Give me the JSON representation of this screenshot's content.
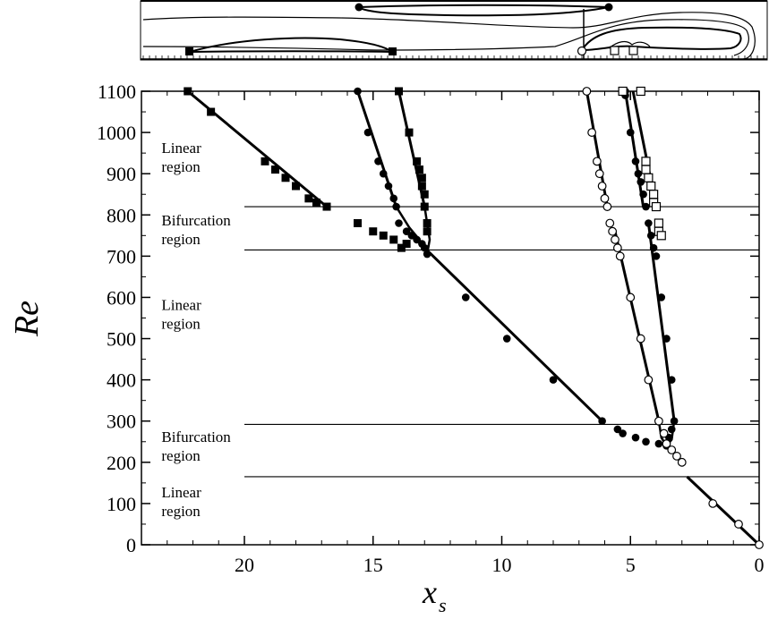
{
  "chart_data": {
    "type": "scatter",
    "title": "",
    "xlabel": "x",
    "xlabel_subscript": "s",
    "ylabel": "Re",
    "xlim": [
      24,
      0
    ],
    "ylim": [
      0,
      1100
    ],
    "x_reversed": true,
    "x_ticks": [
      20,
      15,
      10,
      5,
      0
    ],
    "y_ticks": [
      0,
      100,
      200,
      300,
      400,
      500,
      600,
      700,
      800,
      900,
      1000,
      1100
    ],
    "x_tick_labels": [
      "20",
      "15",
      "10",
      "5",
      "0"
    ],
    "y_tick_labels": [
      "0",
      "100",
      "200",
      "300",
      "400",
      "500",
      "600",
      "700",
      "800",
      "900",
      "1000",
      "1100"
    ],
    "grid": false,
    "legend": "none",
    "region_boundaries": [
      {
        "re": 165,
        "x_from": 20,
        "x_to": 0
      },
      {
        "re": 292,
        "x_from": 20,
        "x_to": 0
      },
      {
        "re": 715,
        "x_from": 20,
        "x_to": 0
      },
      {
        "re": 820,
        "x_from": 20,
        "x_to": 0
      }
    ],
    "region_labels": [
      {
        "lines": [
          "Linear",
          "region"
        ],
        "x": 23.5,
        "re": 950
      },
      {
        "lines": [
          "Bifurcation",
          "region"
        ],
        "x": 23.5,
        "re": 775
      },
      {
        "lines": [
          "Linear",
          "region"
        ],
        "x": 23.5,
        "re": 570
      },
      {
        "lines": [
          "Bifurcation",
          "region"
        ],
        "x": 23.5,
        "re": 250
      },
      {
        "lines": [
          "Linear",
          "region"
        ],
        "x": 23.5,
        "re": 115
      }
    ],
    "series": [
      {
        "marker": "filled-square",
        "points": [
          [
            22.2,
            1100
          ],
          [
            21.3,
            1050
          ],
          [
            19.2,
            930
          ],
          [
            18.8,
            910
          ],
          [
            18.4,
            890
          ],
          [
            18.0,
            870
          ],
          [
            17.5,
            840
          ],
          [
            17.2,
            830
          ],
          [
            16.8,
            820
          ],
          [
            15.6,
            780
          ],
          [
            15.0,
            760
          ],
          [
            14.6,
            750
          ],
          [
            14.2,
            740
          ],
          [
            13.7,
            730
          ],
          [
            13.9,
            720
          ],
          [
            14.0,
            1100
          ],
          [
            13.6,
            1000
          ],
          [
            13.3,
            930
          ],
          [
            13.2,
            910
          ],
          [
            13.1,
            890
          ],
          [
            13.1,
            870
          ],
          [
            13.0,
            850
          ],
          [
            13.0,
            820
          ],
          [
            12.9,
            780
          ],
          [
            12.9,
            760
          ]
        ]
      },
      {
        "marker": "filled-circle",
        "points": [
          [
            15.6,
            1100
          ],
          [
            15.2,
            1000
          ],
          [
            14.8,
            930
          ],
          [
            14.6,
            900
          ],
          [
            14.4,
            870
          ],
          [
            14.2,
            840
          ],
          [
            14.1,
            820
          ],
          [
            14.0,
            780
          ],
          [
            13.7,
            760
          ],
          [
            13.5,
            750
          ],
          [
            13.3,
            740
          ],
          [
            13.1,
            730
          ],
          [
            13.0,
            720
          ],
          [
            12.9,
            705
          ],
          [
            11.4,
            600
          ],
          [
            9.8,
            500
          ],
          [
            8.0,
            400
          ],
          [
            6.1,
            300
          ],
          [
            5.5,
            280
          ],
          [
            5.3,
            270
          ],
          [
            4.8,
            260
          ],
          [
            4.4,
            250
          ],
          [
            3.9,
            245
          ],
          [
            3.6,
            240
          ],
          [
            3.5,
            260
          ],
          [
            3.4,
            280
          ],
          [
            3.3,
            300
          ],
          [
            3.4,
            400
          ],
          [
            3.6,
            500
          ],
          [
            3.8,
            600
          ],
          [
            4.0,
            700
          ],
          [
            4.1,
            720
          ],
          [
            4.2,
            750
          ],
          [
            4.3,
            780
          ],
          [
            4.4,
            820
          ],
          [
            4.5,
            850
          ],
          [
            4.6,
            880
          ],
          [
            4.7,
            900
          ],
          [
            4.8,
            930
          ],
          [
            5.0,
            1000
          ],
          [
            5.2,
            1100
          ],
          [
            5.3,
            1100
          ],
          [
            5.2,
            1090
          ]
        ]
      },
      {
        "marker": "open-circle",
        "points": [
          [
            6.7,
            1100
          ],
          [
            6.5,
            1000
          ],
          [
            6.3,
            930
          ],
          [
            6.2,
            900
          ],
          [
            6.1,
            870
          ],
          [
            6.0,
            840
          ],
          [
            5.9,
            820
          ],
          [
            5.8,
            780
          ],
          [
            5.7,
            760
          ],
          [
            5.6,
            740
          ],
          [
            5.5,
            720
          ],
          [
            5.4,
            700
          ],
          [
            5.0,
            600
          ],
          [
            4.6,
            500
          ],
          [
            4.3,
            400
          ],
          [
            3.9,
            300
          ],
          [
            3.7,
            270
          ],
          [
            3.6,
            245
          ],
          [
            3.4,
            230
          ],
          [
            3.2,
            215
          ],
          [
            3.0,
            200
          ],
          [
            1.8,
            100
          ],
          [
            0.8,
            50
          ],
          [
            0.0,
            0
          ]
        ]
      },
      {
        "marker": "open-square",
        "points": [
          [
            5.3,
            1100
          ],
          [
            4.6,
            1100
          ],
          [
            4.4,
            930
          ],
          [
            4.4,
            910
          ],
          [
            4.3,
            890
          ],
          [
            4.2,
            870
          ],
          [
            4.1,
            850
          ],
          [
            4.1,
            830
          ],
          [
            4.0,
            820
          ],
          [
            3.9,
            780
          ],
          [
            3.9,
            760
          ],
          [
            3.8,
            750
          ]
        ]
      }
    ],
    "fit_lines": [
      {
        "points": [
          [
            22.2,
            1100
          ],
          [
            16.8,
            820
          ]
        ]
      },
      {
        "points": [
          [
            15.6,
            1100
          ],
          [
            14.1,
            820
          ]
        ]
      },
      {
        "points": [
          [
            14.0,
            1100
          ],
          [
            13.0,
            820
          ]
        ]
      },
      {
        "points": [
          [
            13.0,
            720
          ],
          [
            6.1,
            300
          ]
        ]
      },
      {
        "points": [
          [
            2.8,
            165
          ],
          [
            0.0,
            0
          ]
        ]
      },
      {
        "points": [
          [
            6.7,
            1100
          ],
          [
            5.9,
            820
          ]
        ]
      },
      {
        "points": [
          [
            5.2,
            1100
          ],
          [
            4.5,
            820
          ]
        ]
      },
      {
        "points": [
          [
            4.9,
            1100
          ],
          [
            4.0,
            820
          ]
        ]
      },
      {
        "points": [
          [
            5.6,
            760
          ],
          [
            3.9,
            300
          ]
        ]
      },
      {
        "points": [
          [
            4.3,
            780
          ],
          [
            3.3,
            300
          ]
        ]
      }
    ],
    "bifurcation_curves": [
      {
        "points": [
          [
            14.1,
            820
          ],
          [
            13.6,
            770
          ],
          [
            13.2,
            740
          ],
          [
            12.9,
            705
          ]
        ]
      },
      {
        "points": [
          [
            12.9,
            705
          ],
          [
            12.8,
            740
          ],
          [
            12.9,
            780
          ],
          [
            13.0,
            820
          ]
        ]
      },
      {
        "points": [
          [
            3.9,
            300
          ],
          [
            3.8,
            260
          ],
          [
            3.6,
            240
          ],
          [
            3.4,
            255
          ],
          [
            3.3,
            300
          ]
        ]
      }
    ]
  }
}
